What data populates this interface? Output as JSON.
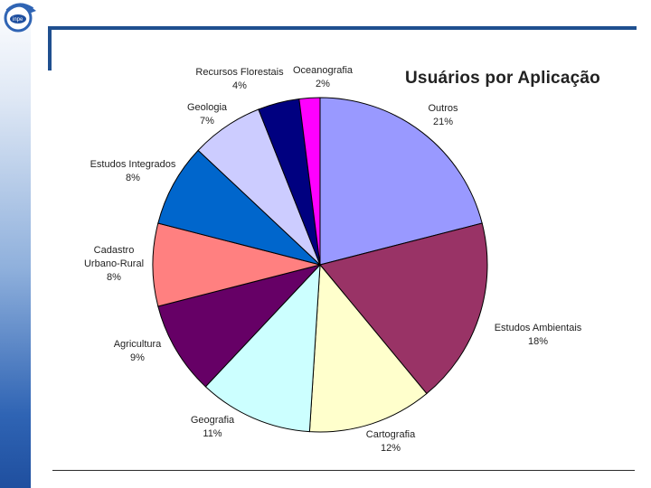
{
  "slide": {
    "title": "Usuários por Aplicação"
  },
  "colors": {
    "sidebar_top": "#ffffff",
    "sidebar_bottom": "#1f4f9f",
    "rule": "#1f4f8f"
  },
  "chart_data": {
    "type": "pie",
    "title": "Usuários por Aplicação",
    "start_angle_deg": 0,
    "direction": "clockwise",
    "slices": [
      {
        "label": "Outros",
        "value": 21,
        "value_text": "21%",
        "color": "#9999ff"
      },
      {
        "label": "Estudos Ambientais",
        "value": 18,
        "value_text": "18%",
        "color": "#993366"
      },
      {
        "label": "Cartografia",
        "value": 12,
        "value_text": "12%",
        "color": "#ffffcc"
      },
      {
        "label": "Geografia",
        "value": 11,
        "value_text": "11%",
        "color": "#ccffff"
      },
      {
        "label": "Agricultura",
        "value": 9,
        "value_text": "9%",
        "color": "#660066"
      },
      {
        "label": "Cadastro Urbano-Rural",
        "value": 8,
        "value_text": "8%",
        "color": "#ff8080",
        "label_lines": [
          "Cadastro",
          "Urbano-Rural"
        ]
      },
      {
        "label": "Estudos Integrados",
        "value": 8,
        "value_text": "8%",
        "color": "#0066cc"
      },
      {
        "label": "Geologia",
        "value": 7,
        "value_text": "7%",
        "color": "#ccccff"
      },
      {
        "label": "Recursos Florestais",
        "value": 4,
        "value_text": "4%",
        "color": "#000080"
      },
      {
        "label": "Oceanografia",
        "value": 2,
        "value_text": "2%",
        "color": "#ff00ff"
      }
    ]
  }
}
